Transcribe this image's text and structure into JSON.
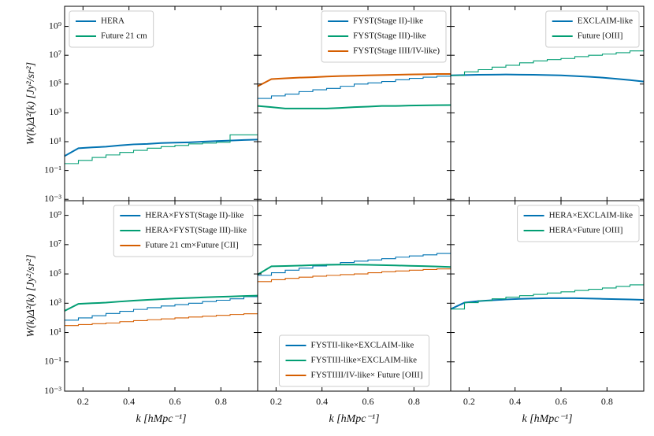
{
  "chart_data": [
    {
      "type": "line",
      "log_y": true,
      "legend": "upper left",
      "ylabel": "W(k)Δ²(k) [Jy²/sr²]",
      "xlim": [
        0.12,
        0.96
      ],
      "ylim": [
        0.0008,
        25000000000
      ],
      "yticks": [
        {
          "value": 1000000000,
          "label": "10⁹"
        },
        {
          "value": 10000000,
          "label": "10⁷"
        },
        {
          "value": 100000,
          "label": "10⁵"
        },
        {
          "value": 1000,
          "label": "10³"
        },
        {
          "value": 10,
          "label": "10¹"
        },
        {
          "value": 0.1,
          "label": "10⁻¹"
        },
        {
          "value": 0.001,
          "label": "10⁻³"
        }
      ],
      "x": [
        0.12,
        0.18,
        0.24,
        0.3,
        0.36,
        0.42,
        0.48,
        0.54,
        0.6,
        0.66,
        0.72,
        0.78,
        0.84,
        0.9,
        0.96
      ],
      "series": [
        {
          "name": "HERA",
          "color": "#0173b2",
          "style": "line",
          "values": [
            1,
            3.5,
            4,
            4.5,
            5.5,
            6.5,
            7,
            8,
            8.5,
            9,
            10,
            11,
            12,
            13,
            14
          ]
        },
        {
          "name": "Future 21 cm",
          "color": "#029e73",
          "style": "step",
          "values": [
            0.3,
            0.5,
            0.8,
            1.2,
            1.8,
            2.5,
            3.5,
            4.5,
            5.5,
            7,
            8,
            9,
            30,
            30,
            30
          ]
        }
      ]
    },
    {
      "type": "line",
      "log_y": true,
      "legend": "upper right",
      "xlim": [
        0.12,
        0.96
      ],
      "ylim": [
        0.0008,
        25000000000
      ],
      "x": [
        0.12,
        0.18,
        0.24,
        0.3,
        0.36,
        0.42,
        0.48,
        0.54,
        0.6,
        0.66,
        0.72,
        0.78,
        0.84,
        0.9,
        0.96
      ],
      "series": [
        {
          "name": "FYST(Stage II)-like",
          "color": "#0173b2",
          "style": "step",
          "values": [
            10000,
            15000,
            20000,
            30000,
            40000,
            50000,
            70000,
            100000,
            120000,
            150000,
            200000,
            250000,
            300000,
            350000,
            400000
          ]
        },
        {
          "name": "FYST(Stage III)-like",
          "color": "#029e73",
          "style": "line",
          "values": [
            3000,
            2500,
            2000,
            2000,
            2000,
            2000,
            2200,
            2500,
            2700,
            3000,
            3000,
            3200,
            3300,
            3400,
            3500
          ]
        },
        {
          "name": "FYST(Stage IIII/IV-like)",
          "color": "#d55e00",
          "style": "line",
          "values": [
            70000,
            220000,
            250000,
            280000,
            300000,
            330000,
            360000,
            380000,
            400000,
            420000,
            440000,
            460000,
            480000,
            500000,
            500000
          ]
        }
      ]
    },
    {
      "type": "line",
      "log_y": true,
      "legend": "upper right",
      "xlim": [
        0.12,
        0.96
      ],
      "ylim": [
        0.0008,
        25000000000
      ],
      "x": [
        0.12,
        0.18,
        0.24,
        0.3,
        0.36,
        0.42,
        0.48,
        0.54,
        0.6,
        0.66,
        0.72,
        0.78,
        0.84,
        0.9,
        0.96
      ],
      "series": [
        {
          "name": "EXCLAIM-like",
          "color": "#0173b2",
          "style": "line",
          "values": [
            400000,
            420000,
            440000,
            450000,
            460000,
            450000,
            440000,
            420000,
            400000,
            360000,
            320000,
            280000,
            230000,
            190000,
            150000
          ]
        },
        {
          "name": "Future [OIII]",
          "color": "#029e73",
          "style": "step",
          "values": [
            400000,
            700000,
            1000000,
            1500000,
            2000000,
            3000000,
            4000000,
            5000000,
            6000000,
            8000000,
            10000000,
            12000000,
            15000000,
            20000000,
            25000000
          ]
        }
      ]
    },
    {
      "type": "line",
      "log_y": true,
      "legend": "upper right",
      "ylabel": "W(k)Δ²(k) [Jy²/sr²]",
      "xlabel": "k [hMpc⁻¹]",
      "xlim": [
        0.12,
        0.96
      ],
      "ylim": [
        0.001,
        10000000000
      ],
      "xticks": [
        0.2,
        0.4,
        0.6,
        0.8
      ],
      "yticks": [
        {
          "value": 1000000000,
          "label": "10⁹"
        },
        {
          "value": 10000000,
          "label": "10⁷"
        },
        {
          "value": 100000,
          "label": "10⁵"
        },
        {
          "value": 1000,
          "label": "10³"
        },
        {
          "value": 10,
          "label": "10¹"
        },
        {
          "value": 0.1,
          "label": "10⁻¹"
        },
        {
          "value": 0.001,
          "label": "10⁻³"
        }
      ],
      "x": [
        0.12,
        0.18,
        0.24,
        0.3,
        0.36,
        0.42,
        0.48,
        0.54,
        0.6,
        0.66,
        0.72,
        0.78,
        0.84,
        0.9,
        0.96
      ],
      "series": [
        {
          "name": "HERA×FYST(Stage II)-like",
          "color": "#0173b2",
          "style": "step",
          "values": [
            70,
            100,
            140,
            200,
            280,
            380,
            500,
            650,
            800,
            1000,
            1300,
            1600,
            2000,
            2800,
            4000
          ]
        },
        {
          "name": "HERA×FYST(Stage III)-like",
          "color": "#029e73",
          "style": "line",
          "values": [
            300,
            900,
            1000,
            1100,
            1300,
            1500,
            1700,
            1900,
            2100,
            2300,
            2500,
            2700,
            2900,
            3100,
            3300
          ]
        },
        {
          "name": "Future 21 cm×Future [CII]",
          "color": "#d55e00",
          "style": "step",
          "values": [
            30,
            35,
            40,
            45,
            55,
            65,
            75,
            85,
            100,
            115,
            130,
            150,
            170,
            190,
            200
          ]
        }
      ]
    },
    {
      "type": "line",
      "log_y": true,
      "legend": "lower center",
      "xlabel": "k [hMpc⁻¹]",
      "xlim": [
        0.12,
        0.96
      ],
      "ylim": [
        0.001,
        10000000000
      ],
      "xticks": [
        0.2,
        0.4,
        0.6,
        0.8
      ],
      "x": [
        0.12,
        0.18,
        0.24,
        0.3,
        0.36,
        0.42,
        0.48,
        0.54,
        0.6,
        0.66,
        0.72,
        0.78,
        0.84,
        0.9,
        0.96
      ],
      "series": [
        {
          "name": "FYSTII-like×EXCLAIM-like",
          "color": "#0173b2",
          "style": "step",
          "values": [
            80000,
            120000,
            180000,
            250000,
            350000,
            450000,
            600000,
            750000,
            900000,
            1100000,
            1400000,
            1700000,
            2000000,
            2500000,
            3000000
          ]
        },
        {
          "name": "FYSTIII-like×EXCLAIM-like",
          "color": "#029e73",
          "style": "line",
          "values": [
            90000,
            330000,
            350000,
            370000,
            400000,
            420000,
            430000,
            430000,
            420000,
            400000,
            380000,
            360000,
            340000,
            320000,
            300000
          ]
        },
        {
          "name": "FYSTIIII/IV-like× Future [OIII]",
          "color": "#d55e00",
          "style": "step",
          "values": [
            30000,
            40000,
            50000,
            60000,
            70000,
            80000,
            90000,
            100000,
            120000,
            140000,
            160000,
            180000,
            200000,
            220000,
            250000
          ]
        }
      ]
    },
    {
      "type": "line",
      "log_y": true,
      "legend": "upper right",
      "xlabel": "k [hMpc⁻¹]",
      "xlim": [
        0.12,
        0.96
      ],
      "ylim": [
        0.001,
        10000000000
      ],
      "xticks": [
        0.2,
        0.4,
        0.6,
        0.8
      ],
      "x": [
        0.12,
        0.18,
        0.24,
        0.3,
        0.36,
        0.42,
        0.48,
        0.54,
        0.6,
        0.66,
        0.72,
        0.78,
        0.84,
        0.9,
        0.96
      ],
      "series": [
        {
          "name": "HERA×EXCLAIM-like",
          "color": "#0173b2",
          "style": "line",
          "values": [
            400,
            1100,
            1400,
            1600,
            1800,
            2000,
            2100,
            2200,
            2200,
            2200,
            2100,
            2000,
            1900,
            1800,
            1700
          ]
        },
        {
          "name": "HERA×Future [OIII]",
          "color": "#029e73",
          "style": "step",
          "values": [
            400,
            1100,
            1500,
            2000,
            2600,
            3300,
            4000,
            5000,
            6000,
            7500,
            9000,
            11000,
            14000,
            18000,
            25000
          ]
        }
      ]
    }
  ]
}
